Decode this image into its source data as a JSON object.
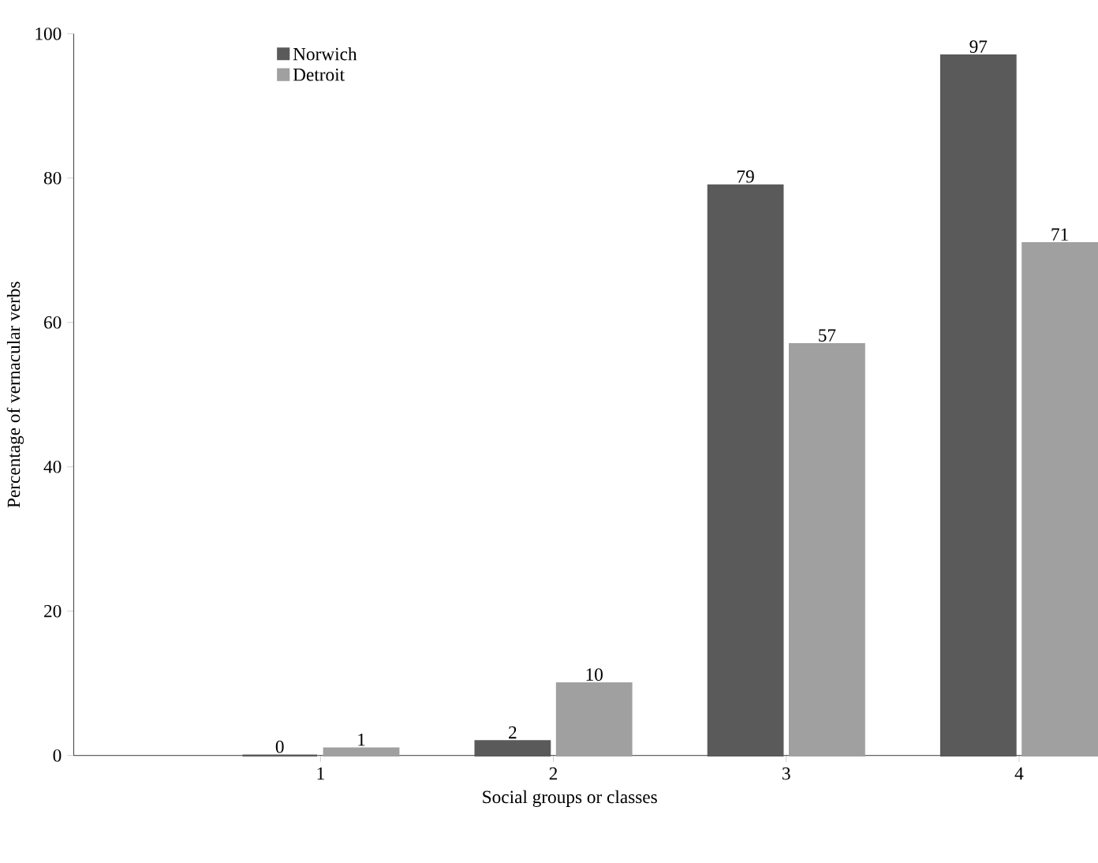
{
  "chart_data": {
    "type": "bar",
    "xlabel": "Social groups or classes",
    "ylabel": "Percentage of vernacular verbs",
    "categories": [
      "1",
      "2",
      "3",
      "4"
    ],
    "series": [
      {
        "name": "Norwich",
        "color": "#5a5a5a",
        "values": [
          0,
          2,
          79,
          97
        ]
      },
      {
        "name": "Detroit",
        "color": "#a0a0a0",
        "values": [
          1,
          10,
          57,
          71
        ]
      }
    ],
    "ylim": [
      0,
      100
    ],
    "yticks": [
      0,
      20,
      40,
      60,
      80,
      100
    ],
    "data_labels": true,
    "legend": "top left",
    "grid": false
  }
}
